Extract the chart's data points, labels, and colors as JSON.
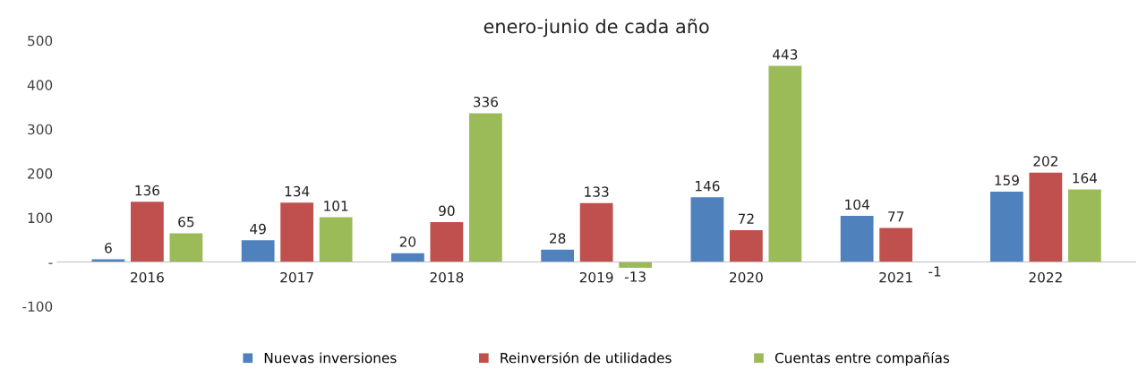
{
  "chart_data": {
    "type": "bar",
    "title": "enero-junio de cada año",
    "categories": [
      "2016",
      "2017",
      "2018",
      "2019",
      "2020",
      "2021",
      "2022"
    ],
    "series": [
      {
        "name": "Nuevas inversiones",
        "color": "#4f81bd",
        "values": [
          6,
          49,
          20,
          28,
          146,
          104,
          159
        ]
      },
      {
        "name": "Reinversión de utilidades",
        "color": "#c0504d",
        "values": [
          136,
          134,
          90,
          133,
          72,
          77,
          202
        ]
      },
      {
        "name": "Cuentas entre compañías",
        "color": "#9bbb59",
        "values": [
          65,
          101,
          336,
          -13,
          443,
          -1,
          164
        ]
      }
    ],
    "ylim": [
      -100,
      500
    ],
    "yticks": [
      -100,
      {
        "value": 0,
        "label": "-"
      },
      100,
      200,
      300,
      400,
      500
    ],
    "data_labels": true,
    "grid": false,
    "legend": "bottom"
  }
}
